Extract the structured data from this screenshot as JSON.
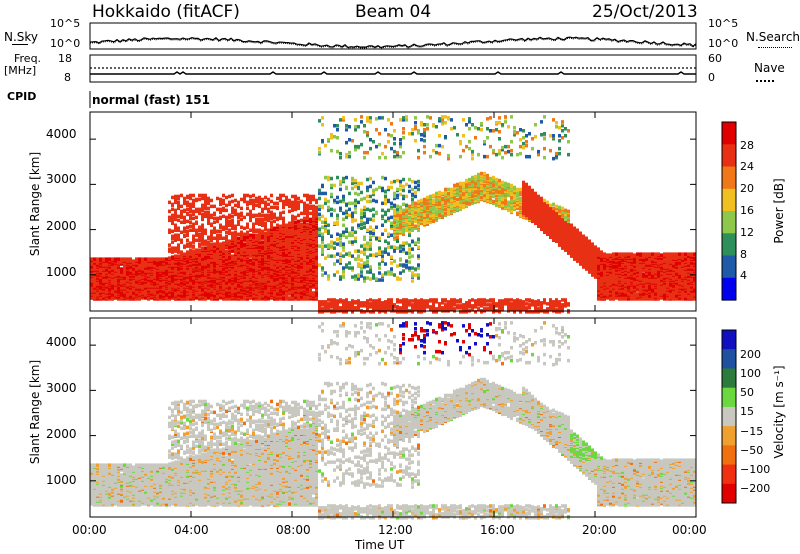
{
  "header": {
    "station": "Hokkaido (fitACF)",
    "beam": "Beam 04",
    "date": "25/Oct/2013"
  },
  "strip": {
    "nsky_label": "N.Sky",
    "nsky_ticks": [
      "10^5",
      "10^0"
    ],
    "nsearch_label": "N.Search",
    "freq_label_1": "Freq.",
    "freq_label_2": "[MHz]",
    "freq_ticks": [
      "18",
      "8"
    ],
    "nave_label": "Nave",
    "nave_ticks": [
      "60",
      "0"
    ],
    "cpid_label": "CPID",
    "cpid_value": "normal (fast) 151"
  },
  "chart_data": [
    {
      "type": "heatmap",
      "parameter": "power",
      "ylabel": "Slant Range [km]",
      "xlim_hours": [
        0,
        24
      ],
      "ylim": [
        200,
        4600
      ],
      "yticks": [
        "1000",
        "2000",
        "3000",
        "4000"
      ],
      "colorbar": {
        "label": "Power [dB]",
        "ticks": [
          "28",
          "24",
          "20",
          "16",
          "12",
          "8",
          "4"
        ],
        "colors": [
          "#0000ee",
          "#1e5aa8",
          "#2f8f5a",
          "#8dc84a",
          "#f0c020",
          "#f07818",
          "#e83014",
          "#e00000"
        ]
      }
    },
    {
      "type": "heatmap",
      "parameter": "velocity",
      "ylabel": "Slant Range [km]",
      "xlabel": "Time UT",
      "xlim_hours": [
        0,
        24
      ],
      "ylim": [
        200,
        4600
      ],
      "xticks": [
        "00:00",
        "04:00",
        "08:00",
        "12:00",
        "16:00",
        "20:00",
        "00:00"
      ],
      "yticks": [
        "1000",
        "2000",
        "3000",
        "4000"
      ],
      "colorbar": {
        "label": "Velocity [m s⁻¹]",
        "ticks": [
          "200",
          "100",
          "50",
          "15",
          "−15",
          "−50",
          "−100",
          "−200"
        ],
        "colors": [
          "#1010c0",
          "#2050a0",
          "#2c7a3c",
          "#6cd840",
          "#c8c8c0",
          "#f0a030",
          "#f07010",
          "#f03010",
          "#e00000"
        ]
      }
    }
  ]
}
